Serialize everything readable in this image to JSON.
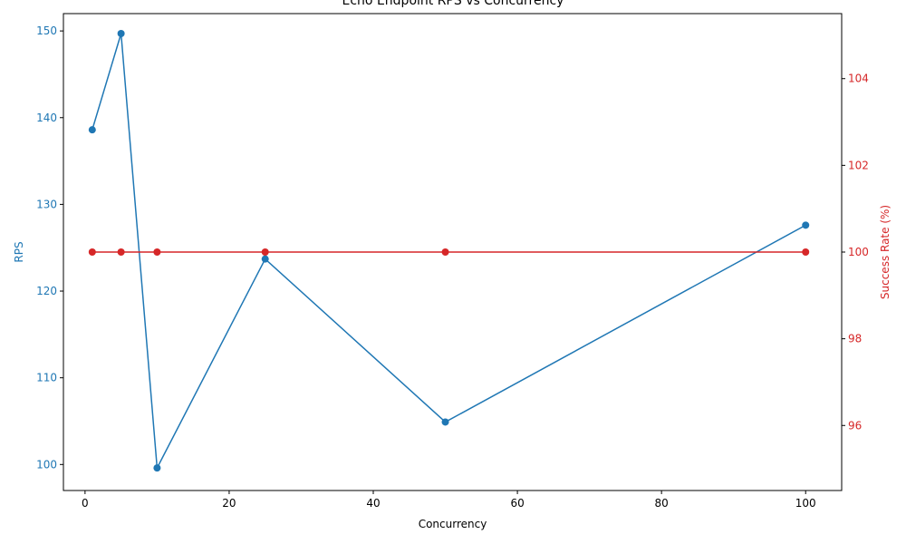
{
  "chart_data": {
    "type": "line",
    "title": "Echo Endpoint RPS vs Concurrency",
    "xlabel": "Concurrency",
    "ylabel": "RPS",
    "ylabel_right": "Success Rate (%)",
    "x": [
      1,
      5,
      10,
      25,
      50,
      100
    ],
    "xlim": [
      -3,
      105
    ],
    "ylim": [
      97,
      152
    ],
    "ylim_right": [
      94.5,
      105.5
    ],
    "x_ticks": [
      "0",
      "20",
      "40",
      "60",
      "80",
      "100"
    ],
    "y_ticks": [
      "100",
      "110",
      "120",
      "130",
      "140",
      "150"
    ],
    "y_ticks_right": [
      "96",
      "98",
      "100",
      "102",
      "104"
    ],
    "grid": false,
    "series": [
      {
        "axis": "left",
        "color": "#1f77b4",
        "values": [
          138.6,
          149.7,
          99.6,
          123.7,
          104.9,
          127.6
        ]
      },
      {
        "axis": "right",
        "color": "#d62728",
        "values": [
          100,
          100,
          100,
          100,
          100,
          100
        ]
      }
    ]
  }
}
